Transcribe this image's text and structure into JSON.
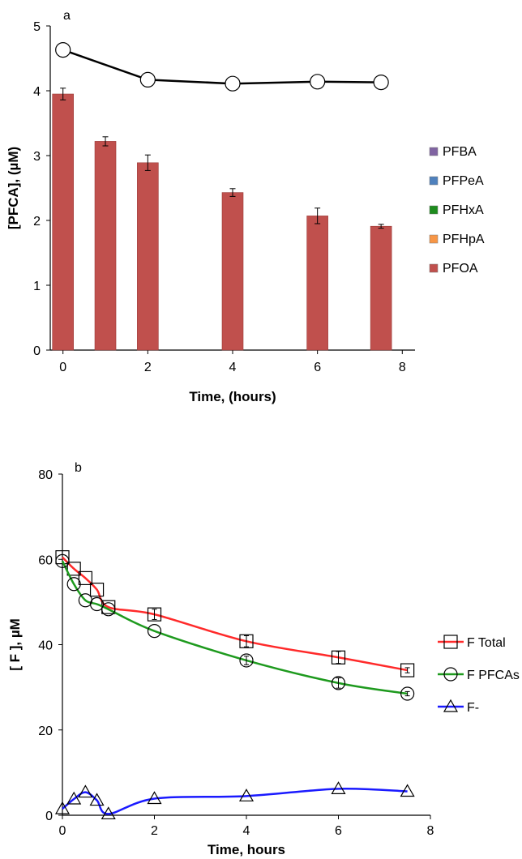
{
  "chart_data": [
    {
      "type": "bar",
      "panel_label": "a",
      "xlabel": "Time, (hours)",
      "ylabel": "[PFCA], (µM)",
      "xlim": [
        -0.3,
        8.3
      ],
      "ylim": [
        0,
        5
      ],
      "xticks": [
        0,
        2,
        4,
        6,
        8
      ],
      "yticks": [
        0,
        1,
        2,
        3,
        4,
        5
      ],
      "legend_position": "right",
      "legend": [
        {
          "name": "PFBA",
          "color": "#8064a2"
        },
        {
          "name": "PFPeA",
          "color": "#4f81bd"
        },
        {
          "name": "PFHxA",
          "color": "#1e8c1e"
        },
        {
          "name": "PFHpA",
          "color": "#f79646"
        },
        {
          "name": "PFOA",
          "color": "#c0504d"
        }
      ],
      "bars": {
        "series": "PFOA",
        "color": "#c0504d",
        "x": [
          0,
          1,
          2,
          4,
          6,
          7.5
        ],
        "values": [
          3.95,
          3.22,
          2.89,
          2.43,
          2.07,
          1.91
        ],
        "errors": [
          0.09,
          0.07,
          0.12,
          0.06,
          0.12,
          0.03
        ]
      },
      "total_line": {
        "color": "#000000",
        "x": [
          0,
          2,
          4,
          6,
          7.5
        ],
        "values": [
          4.63,
          4.17,
          4.11,
          4.14,
          4.13
        ]
      }
    },
    {
      "type": "line",
      "panel_label": "b",
      "xlabel": "Time, hours",
      "ylabel": "[ F ], µM",
      "xlim": [
        0,
        8
      ],
      "ylim": [
        0,
        80
      ],
      "xticks": [
        0,
        2,
        4,
        6,
        8
      ],
      "yticks": [
        0,
        20,
        40,
        60,
        80
      ],
      "legend_position": "right",
      "series": [
        {
          "name": "F Total",
          "color": "#ff2a2a",
          "marker": "square",
          "x": [
            0,
            0.25,
            0.5,
            0.75,
            1,
            2,
            4,
            6,
            7.5
          ],
          "values": [
            60.5,
            57.8,
            55.6,
            52.9,
            48.8,
            47.1,
            40.8,
            37.0,
            34.0
          ],
          "errors": [
            0,
            0,
            0,
            0,
            0,
            1.2,
            1.3,
            1.4,
            0.6
          ]
        },
        {
          "name": "F PFCAs",
          "color": "#1e9a1e",
          "marker": "circle",
          "x": [
            0,
            0.25,
            0.5,
            0.75,
            1,
            2,
            4,
            6,
            7.5
          ],
          "values": [
            59.6,
            54.2,
            50.4,
            49.5,
            48.3,
            43.2,
            36.3,
            31.0,
            28.5
          ],
          "errors": [
            0,
            0,
            0,
            0,
            0,
            0,
            1.0,
            1.2,
            0.5
          ]
        },
        {
          "name": "F-",
          "color": "#1a1aff",
          "marker": "triangle",
          "x": [
            0,
            0.25,
            0.5,
            0.75,
            1,
            2,
            4,
            6,
            7.5
          ],
          "values": [
            1.5,
            3.8,
            5.4,
            3.5,
            0.3,
            3.9,
            4.5,
            6.2,
            5.6
          ],
          "errors": [
            0,
            0,
            0,
            0,
            0,
            0,
            0,
            0,
            0
          ]
        }
      ]
    }
  ]
}
